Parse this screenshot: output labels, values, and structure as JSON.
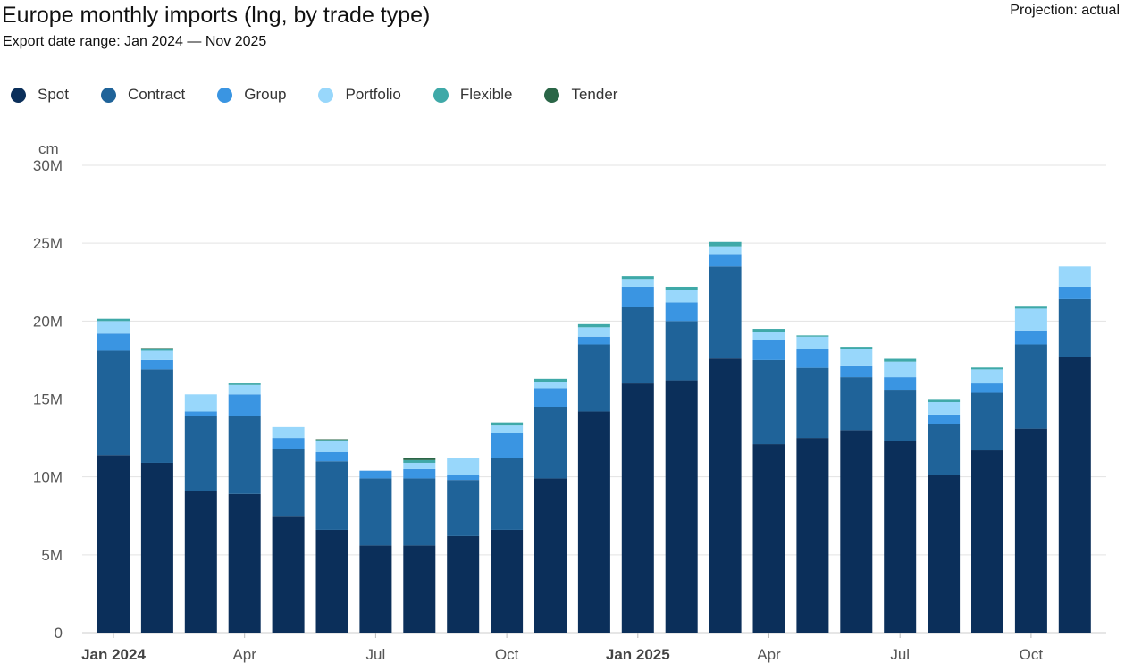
{
  "header": {
    "title": "Europe monthly imports (lng, by trade type)",
    "subtitle": "Export date range: Jan 2024 — Nov 2025",
    "projection": "Projection: actual"
  },
  "chart_data": {
    "type": "bar",
    "stacked": true,
    "title": "Europe monthly imports (lng, by trade type)",
    "subtitle": "Export date range: Jan 2024 — Nov 2025",
    "ylabel": "cm",
    "ylim": [
      0,
      30000000
    ],
    "yticks": [
      {
        "value": 0,
        "label": "0"
      },
      {
        "value": 5000000,
        "label": "5M"
      },
      {
        "value": 10000000,
        "label": "10M"
      },
      {
        "value": 15000000,
        "label": "15M"
      },
      {
        "value": 20000000,
        "label": "20M"
      },
      {
        "value": 25000000,
        "label": "25M"
      },
      {
        "value": 30000000,
        "label": "30M"
      }
    ],
    "grid": true,
    "legend_position": "top-left",
    "categories": [
      "Jan 2024",
      "Feb 2024",
      "Mar 2024",
      "Apr 2024",
      "May 2024",
      "Jun 2024",
      "Jul 2024",
      "Aug 2024",
      "Sep 2024",
      "Oct 2024",
      "Nov 2024",
      "Dec 2024",
      "Jan 2025",
      "Feb 2025",
      "Mar 2025",
      "Apr 2025",
      "May 2025",
      "Jun 2025",
      "Jul 2025",
      "Aug 2025",
      "Sep 2025",
      "Oct 2025",
      "Nov 2025"
    ],
    "x_tick_labels": [
      {
        "index": 0,
        "label": "Jan 2024",
        "bold": true
      },
      {
        "index": 3,
        "label": "Apr",
        "bold": false
      },
      {
        "index": 6,
        "label": "Jul",
        "bold": false
      },
      {
        "index": 9,
        "label": "Oct",
        "bold": false
      },
      {
        "index": 12,
        "label": "Jan 2025",
        "bold": true
      },
      {
        "index": 15,
        "label": "Apr",
        "bold": false
      },
      {
        "index": 18,
        "label": "Jul",
        "bold": false
      },
      {
        "index": 21,
        "label": "Oct",
        "bold": false
      }
    ],
    "series": [
      {
        "name": "Spot",
        "color": "#0b2f5a",
        "values": [
          11400000,
          10900000,
          9100000,
          8900000,
          7500000,
          6600000,
          5600000,
          5600000,
          6200000,
          6600000,
          9900000,
          14200000,
          16000000,
          16200000,
          17600000,
          12100000,
          12500000,
          13000000,
          12300000,
          10100000,
          11700000,
          13100000,
          17700000
        ]
      },
      {
        "name": "Contract",
        "color": "#1f6399",
        "values": [
          6700000,
          6000000,
          4800000,
          5000000,
          4300000,
          4400000,
          4300000,
          4300000,
          3600000,
          4600000,
          4600000,
          4300000,
          4900000,
          3800000,
          5900000,
          5400000,
          4500000,
          3400000,
          3300000,
          3300000,
          3700000,
          5400000,
          3700000
        ]
      },
      {
        "name": "Group",
        "color": "#3a95e2",
        "values": [
          1100000,
          600000,
          300000,
          1400000,
          700000,
          600000,
          500000,
          600000,
          300000,
          1600000,
          1200000,
          500000,
          1300000,
          1200000,
          800000,
          1300000,
          1200000,
          700000,
          800000,
          600000,
          600000,
          900000,
          800000
        ]
      },
      {
        "name": "Portfolio",
        "color": "#98d7fb",
        "values": [
          800000,
          600000,
          1100000,
          600000,
          700000,
          700000,
          0,
          400000,
          1100000,
          500000,
          400000,
          600000,
          500000,
          800000,
          500000,
          500000,
          800000,
          1100000,
          1000000,
          800000,
          900000,
          1400000,
          1300000
        ]
      },
      {
        "name": "Flexible",
        "color": "#3fa9a8",
        "values": [
          150000,
          150000,
          0,
          100000,
          0,
          80000,
          0,
          180000,
          0,
          200000,
          200000,
          200000,
          180000,
          200000,
          280000,
          200000,
          80000,
          150000,
          180000,
          150000,
          120000,
          180000,
          0
        ]
      },
      {
        "name": "Tender",
        "color": "#2a6647",
        "values": [
          0,
          30000,
          0,
          0,
          0,
          40000,
          0,
          130000,
          0,
          0,
          0,
          0,
          0,
          0,
          0,
          0,
          0,
          0,
          0,
          0,
          0,
          0,
          0
        ]
      }
    ]
  }
}
